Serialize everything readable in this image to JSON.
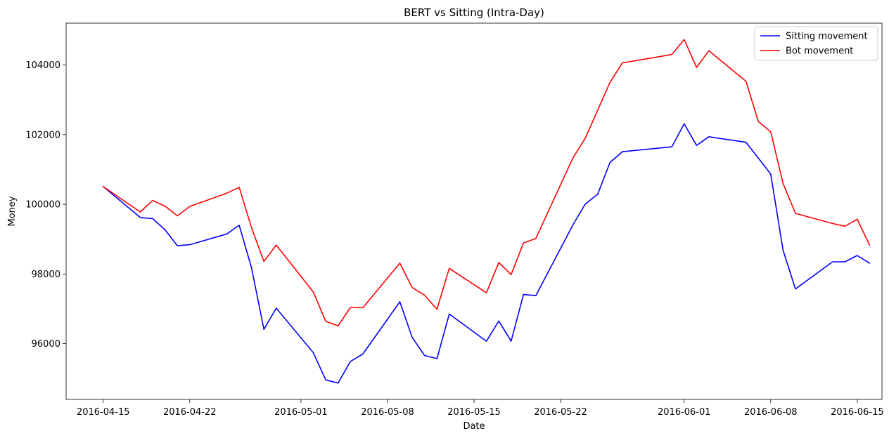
{
  "chart_data": {
    "type": "line",
    "title": "BERT vs Sitting (Intra-Day)",
    "xlabel": "Date",
    "ylabel": "Money",
    "x_is_date": true,
    "xlim": [
      "2016-04-12",
      "2016-06-17"
    ],
    "ylim": [
      94400,
      105200
    ],
    "xticks": [
      "2016-04-15",
      "2016-04-22",
      "2016-05-01",
      "2016-05-08",
      "2016-05-15",
      "2016-05-22",
      "2016-06-01",
      "2016-06-08",
      "2016-06-15"
    ],
    "yticks": [
      96000,
      98000,
      100000,
      102000,
      104000
    ],
    "grid": false,
    "legend_position": "top-right",
    "series": [
      {
        "name": "Sitting movement",
        "color": "#0000ff",
        "points": [
          [
            "2016-04-15",
            100510
          ],
          [
            "2016-04-18",
            99620
          ],
          [
            "2016-04-19",
            99590
          ],
          [
            "2016-04-20",
            99270
          ],
          [
            "2016-04-21",
            98810
          ],
          [
            "2016-04-22",
            98840
          ],
          [
            "2016-04-25",
            99150
          ],
          [
            "2016-04-26",
            99400
          ],
          [
            "2016-04-27",
            98180
          ],
          [
            "2016-04-28",
            96410
          ],
          [
            "2016-04-29",
            97020
          ],
          [
            "2016-05-02",
            95740
          ],
          [
            "2016-05-03",
            94960
          ],
          [
            "2016-05-04",
            94870
          ],
          [
            "2016-05-05",
            95490
          ],
          [
            "2016-05-06",
            95700
          ],
          [
            "2016-05-09",
            97200
          ],
          [
            "2016-05-10",
            96180
          ],
          [
            "2016-05-11",
            95660
          ],
          [
            "2016-05-12",
            95570
          ],
          [
            "2016-05-13",
            96850
          ],
          [
            "2016-05-16",
            96070
          ],
          [
            "2016-05-17",
            96650
          ],
          [
            "2016-05-18",
            96070
          ],
          [
            "2016-05-19",
            97410
          ],
          [
            "2016-05-20",
            97380
          ],
          [
            "2016-05-23",
            99410
          ],
          [
            "2016-05-24",
            100010
          ],
          [
            "2016-05-25",
            100290
          ],
          [
            "2016-05-26",
            101200
          ],
          [
            "2016-05-27",
            101510
          ],
          [
            "2016-05-31",
            101650
          ],
          [
            "2016-06-01",
            102310
          ],
          [
            "2016-06-02",
            101690
          ],
          [
            "2016-06-03",
            101940
          ],
          [
            "2016-06-06",
            101780
          ],
          [
            "2016-06-08",
            100870
          ],
          [
            "2016-06-09",
            98680
          ],
          [
            "2016-06-10",
            97570
          ],
          [
            "2016-06-13",
            98350
          ],
          [
            "2016-06-14",
            98350
          ],
          [
            "2016-06-15",
            98530
          ],
          [
            "2016-06-16",
            98310
          ]
        ]
      },
      {
        "name": "Bot movement",
        "color": "#ff0000",
        "points": [
          [
            "2016-04-15",
            100510
          ],
          [
            "2016-04-18",
            99780
          ],
          [
            "2016-04-19",
            100110
          ],
          [
            "2016-04-20",
            99950
          ],
          [
            "2016-04-21",
            99670
          ],
          [
            "2016-04-22",
            99940
          ],
          [
            "2016-04-25",
            100320
          ],
          [
            "2016-04-26",
            100490
          ],
          [
            "2016-04-27",
            99330
          ],
          [
            "2016-04-28",
            98360
          ],
          [
            "2016-04-29",
            98830
          ],
          [
            "2016-05-02",
            97480
          ],
          [
            "2016-05-03",
            96640
          ],
          [
            "2016-05-04",
            96510
          ],
          [
            "2016-05-05",
            97040
          ],
          [
            "2016-05-06",
            97030
          ],
          [
            "2016-05-09",
            98310
          ],
          [
            "2016-05-10",
            97610
          ],
          [
            "2016-05-11",
            97390
          ],
          [
            "2016-05-12",
            96990
          ],
          [
            "2016-05-13",
            98160
          ],
          [
            "2016-05-16",
            97460
          ],
          [
            "2016-05-17",
            98330
          ],
          [
            "2016-05-18",
            97980
          ],
          [
            "2016-05-19",
            98890
          ],
          [
            "2016-05-20",
            99020
          ],
          [
            "2016-05-23",
            101330
          ],
          [
            "2016-05-24",
            101900
          ],
          [
            "2016-05-25",
            102700
          ],
          [
            "2016-05-26",
            103500
          ],
          [
            "2016-05-27",
            104060
          ],
          [
            "2016-05-31",
            104300
          ],
          [
            "2016-06-01",
            104730
          ],
          [
            "2016-06-02",
            103930
          ],
          [
            "2016-06-03",
            104410
          ],
          [
            "2016-06-06",
            103530
          ],
          [
            "2016-06-07",
            102380
          ],
          [
            "2016-06-08",
            102080
          ],
          [
            "2016-06-09",
            100600
          ],
          [
            "2016-06-10",
            99740
          ],
          [
            "2016-06-13",
            99450
          ],
          [
            "2016-06-14",
            99370
          ],
          [
            "2016-06-15",
            99570
          ],
          [
            "2016-06-16",
            98830
          ]
        ]
      }
    ]
  }
}
